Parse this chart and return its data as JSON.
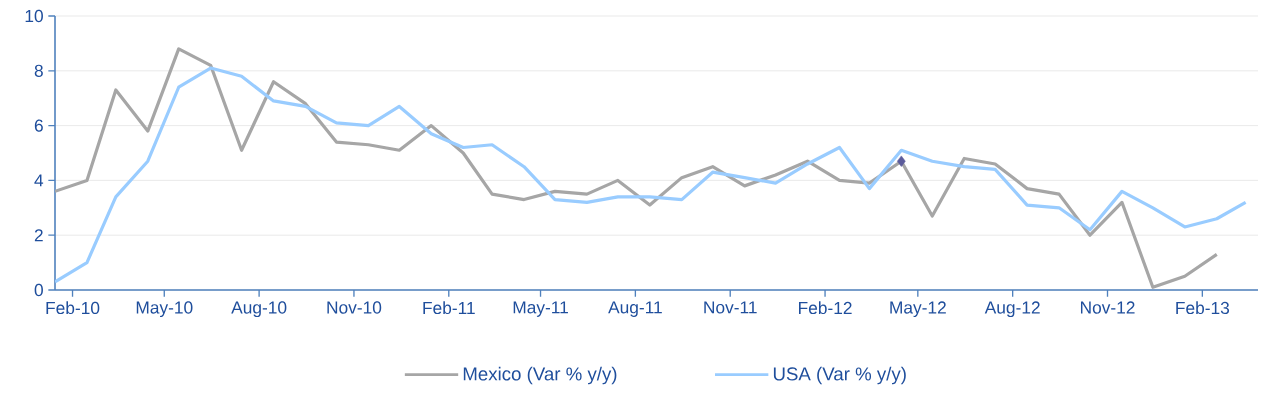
{
  "chart_data": {
    "type": "line",
    "x": [
      "2010-01-15",
      "2010-02-15",
      "2010-03-15",
      "2010-04-15",
      "2010-05-15",
      "2010-06-15",
      "2010-07-15",
      "2010-08-15",
      "2010-09-15",
      "2010-10-15",
      "2010-11-15",
      "2010-12-15",
      "2011-01-15",
      "2011-02-15",
      "2011-03-15",
      "2011-04-15",
      "2011-05-15",
      "2011-06-15",
      "2011-07-15",
      "2011-08-15",
      "2011-09-15",
      "2011-10-15",
      "2011-11-15",
      "2011-12-15",
      "2012-01-15",
      "2012-02-15",
      "2012-03-15",
      "2012-04-15",
      "2012-05-15",
      "2012-06-15",
      "2012-07-15",
      "2012-08-15",
      "2012-09-15",
      "2012-10-15",
      "2012-11-15",
      "2012-12-15",
      "2013-01-15",
      "2013-02-15",
      "2013-03-15"
    ],
    "series": [
      {
        "name": "Mexico (Var % y/y)",
        "color": "#a6a6a6",
        "values": [
          3.6,
          4.0,
          7.3,
          5.8,
          8.8,
          8.2,
          5.1,
          7.6,
          6.8,
          5.4,
          5.3,
          5.1,
          6.0,
          5.0,
          3.5,
          3.3,
          3.6,
          3.5,
          4.0,
          3.1,
          4.1,
          4.5,
          3.8,
          4.2,
          4.7,
          4.0,
          3.9,
          4.7,
          2.7,
          4.8,
          4.6,
          3.7,
          3.5,
          2.0,
          3.2,
          0.1,
          0.5,
          1.3,
          null
        ]
      },
      {
        "name": "USA (Var % y/y)",
        "color": "#99ccff",
        "values": [
          0.3,
          1.0,
          3.4,
          4.7,
          7.4,
          8.1,
          7.8,
          6.9,
          6.7,
          6.1,
          6.0,
          6.7,
          5.7,
          5.2,
          5.3,
          4.5,
          3.3,
          3.2,
          3.4,
          3.4,
          3.3,
          4.3,
          4.1,
          3.9,
          4.6,
          5.2,
          3.7,
          5.1,
          4.7,
          4.5,
          4.4,
          3.1,
          3.0,
          2.2,
          3.6,
          3.0,
          2.3,
          2.6,
          3.2
        ]
      },
      {
        "type": "scatter",
        "marker": "diamond",
        "color": "#5b5b9b",
        "x": [
          "2012-04-15"
        ],
        "values": [
          4.7
        ]
      }
    ],
    "xlim": [
      "2010-01-15",
      "2013-03-27"
    ],
    "xticks": [
      {
        "value": "2010-02-01",
        "label": "Feb-10"
      },
      {
        "value": "2010-05-01",
        "label": "May-10"
      },
      {
        "value": "2010-08-01",
        "label": "Aug-10"
      },
      {
        "value": "2010-11-01",
        "label": "Nov-10"
      },
      {
        "value": "2011-02-01",
        "label": "Feb-11"
      },
      {
        "value": "2011-05-01",
        "label": "May-11"
      },
      {
        "value": "2011-08-01",
        "label": "Aug-11"
      },
      {
        "value": "2011-11-01",
        "label": "Nov-11"
      },
      {
        "value": "2012-02-01",
        "label": "Feb-12"
      },
      {
        "value": "2012-05-01",
        "label": "May-12"
      },
      {
        "value": "2012-08-01",
        "label": "Aug-12"
      },
      {
        "value": "2012-11-01",
        "label": "Nov-12"
      },
      {
        "value": "2013-02-01",
        "label": "Feb-13"
      }
    ],
    "ylim": [
      0,
      10
    ],
    "yticks": [
      0,
      2,
      4,
      6,
      8,
      10
    ],
    "grid": "y",
    "legend": "bottom"
  }
}
